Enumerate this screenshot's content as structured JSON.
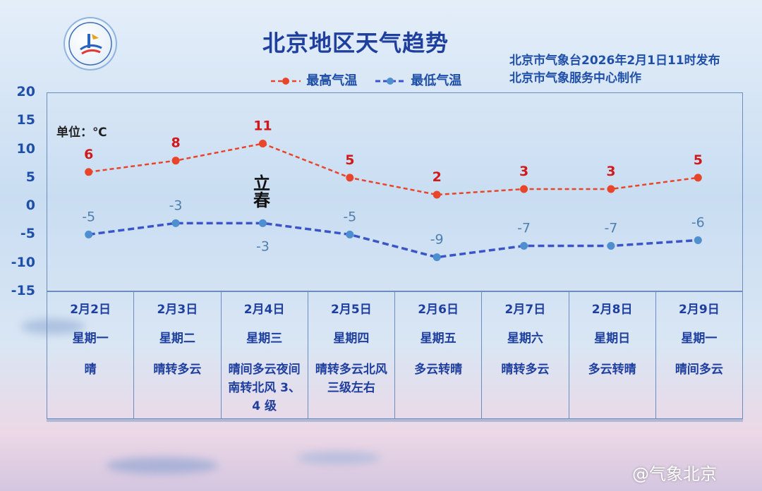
{
  "title": "北京地区天气趋势",
  "issuer": {
    "line1": "北京市气象台2026年2月1日11时发布",
    "line2": "北京市气象服务中心制作"
  },
  "unit_label": "单位：℃",
  "solar_term": "立春",
  "watermark": "@气象北京",
  "colors": {
    "high": "#e8452a",
    "low": "#3b55c8",
    "low_point": "#4d8fcf",
    "high_label": "#d0191b",
    "low_label": "#4f7faf",
    "axis_text": "#1f4fa8"
  },
  "chart_data": {
    "type": "line",
    "title": "北京地区天气趋势",
    "ylim": [
      -15,
      20
    ],
    "yticks": [
      "20",
      "15",
      "10",
      "5",
      "0",
      "-5",
      "-10",
      "-15"
    ],
    "categories": [
      "2月2日",
      "2月3日",
      "2月4日",
      "2月5日",
      "2月6日",
      "2月7日",
      "2月8日",
      "2月9日"
    ],
    "series": [
      {
        "name": "最高气温",
        "values": [
          6,
          8,
          11,
          5,
          2,
          3,
          3,
          5
        ],
        "style": "dashed",
        "color": "#e8452a"
      },
      {
        "name": "最低气温",
        "values": [
          -5,
          -3,
          -3,
          -5,
          -9,
          -7,
          -7,
          -6
        ],
        "style": "dashed",
        "color": "#3b55c8"
      }
    ],
    "legend": "top-center",
    "grid": false
  },
  "days": [
    {
      "date": "2月2日",
      "weekday": "星期一",
      "condition": "晴"
    },
    {
      "date": "2月3日",
      "weekday": "星期二",
      "condition": "晴转多云"
    },
    {
      "date": "2月4日",
      "weekday": "星期三",
      "condition": "晴间多云夜间南转北风 3、4 级"
    },
    {
      "date": "2月5日",
      "weekday": "星期四",
      "condition": "晴转多云北风三级左右"
    },
    {
      "date": "2月6日",
      "weekday": "星期五",
      "condition": "多云转晴"
    },
    {
      "date": "2月7日",
      "weekday": "星期六",
      "condition": "晴转多云"
    },
    {
      "date": "2月8日",
      "weekday": "星期日",
      "condition": "多云转晴"
    },
    {
      "date": "2月9日",
      "weekday": "星期一",
      "condition": "晴间多云"
    }
  ]
}
